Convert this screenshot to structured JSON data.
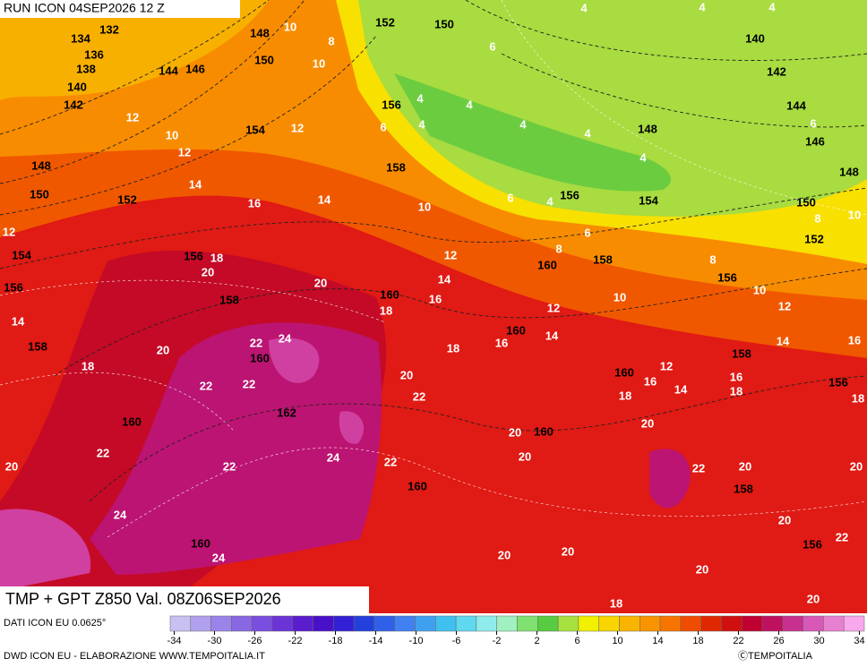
{
  "header": {
    "run": "RUN ICON 04SEP2026 12 Z",
    "product": "TMP + GPT Z850 Val. 08Z06SEP2026",
    "source": "DATI ICON EU 0.0625°"
  },
  "footer": {
    "credit": "DWD ICON EU - ELABORAZIONE WWW.TEMPOITALIA.IT",
    "copyright": "ⒸTEMPOITALIA"
  },
  "colorbar": {
    "ticks": [
      -34,
      -30,
      -26,
      -22,
      -18,
      -14,
      -10,
      -6,
      -2,
      2,
      6,
      10,
      14,
      18,
      22,
      26,
      30,
      34
    ],
    "colors": [
      "#c8c0f0",
      "#b0a0ee",
      "#9a84ea",
      "#8a68e4",
      "#7a4ede",
      "#6a34d6",
      "#5a1ccc",
      "#4810c8",
      "#3420d4",
      "#2440dc",
      "#3060e8",
      "#4080f0",
      "#40a0f0",
      "#40c0f0",
      "#60d8f0",
      "#90ecec",
      "#a0f0c0",
      "#80e070",
      "#58cc40",
      "#a8e040",
      "#f0f000",
      "#f8d400",
      "#f8b400",
      "#f89400",
      "#f87400",
      "#f04c00",
      "#e02800",
      "#d01010",
      "#c00030",
      "#c01060",
      "#c83090",
      "#d858b8",
      "#e880d0",
      "#f8a8ec"
    ]
  },
  "map": {
    "gpt_labels": [
      "132",
      "134",
      "136",
      "138",
      "140",
      "142",
      "144",
      "146",
      "148",
      "150",
      "152",
      "150",
      "154",
      "156",
      "158",
      "148",
      "150",
      "152",
      "154",
      "156",
      "158",
      "156",
      "158",
      "160",
      "160",
      "162",
      "160",
      "160",
      "160",
      "160",
      "160",
      "158",
      "156",
      "154",
      "148",
      "140",
      "142",
      "144",
      "146",
      "148",
      "150",
      "152",
      "156",
      "158",
      "160",
      "160",
      "156",
      "158",
      "156"
    ],
    "temp_labels": [
      "10",
      "8",
      "10",
      "12",
      "10",
      "12",
      "12",
      "14",
      "16",
      "14",
      "10",
      "6",
      "4",
      "4",
      "4",
      "4",
      "4",
      "4",
      "6",
      "6",
      "8",
      "12",
      "14",
      "16",
      "18",
      "20",
      "18",
      "20",
      "12",
      "14",
      "18",
      "20",
      "22",
      "24",
      "22",
      "22",
      "20",
      "22",
      "22",
      "20",
      "22",
      "24",
      "22",
      "24",
      "24",
      "20",
      "20",
      "18",
      "16",
      "12",
      "14",
      "10",
      "8",
      "10",
      "12",
      "14",
      "16",
      "18",
      "16",
      "18",
      "14",
      "12",
      "20",
      "22",
      "20",
      "20",
      "22",
      "20",
      "20",
      "20",
      "20",
      "20",
      "18",
      "16",
      "18",
      "6",
      "8",
      "10",
      "4",
      "4",
      "4",
      "6",
      "4"
    ]
  }
}
